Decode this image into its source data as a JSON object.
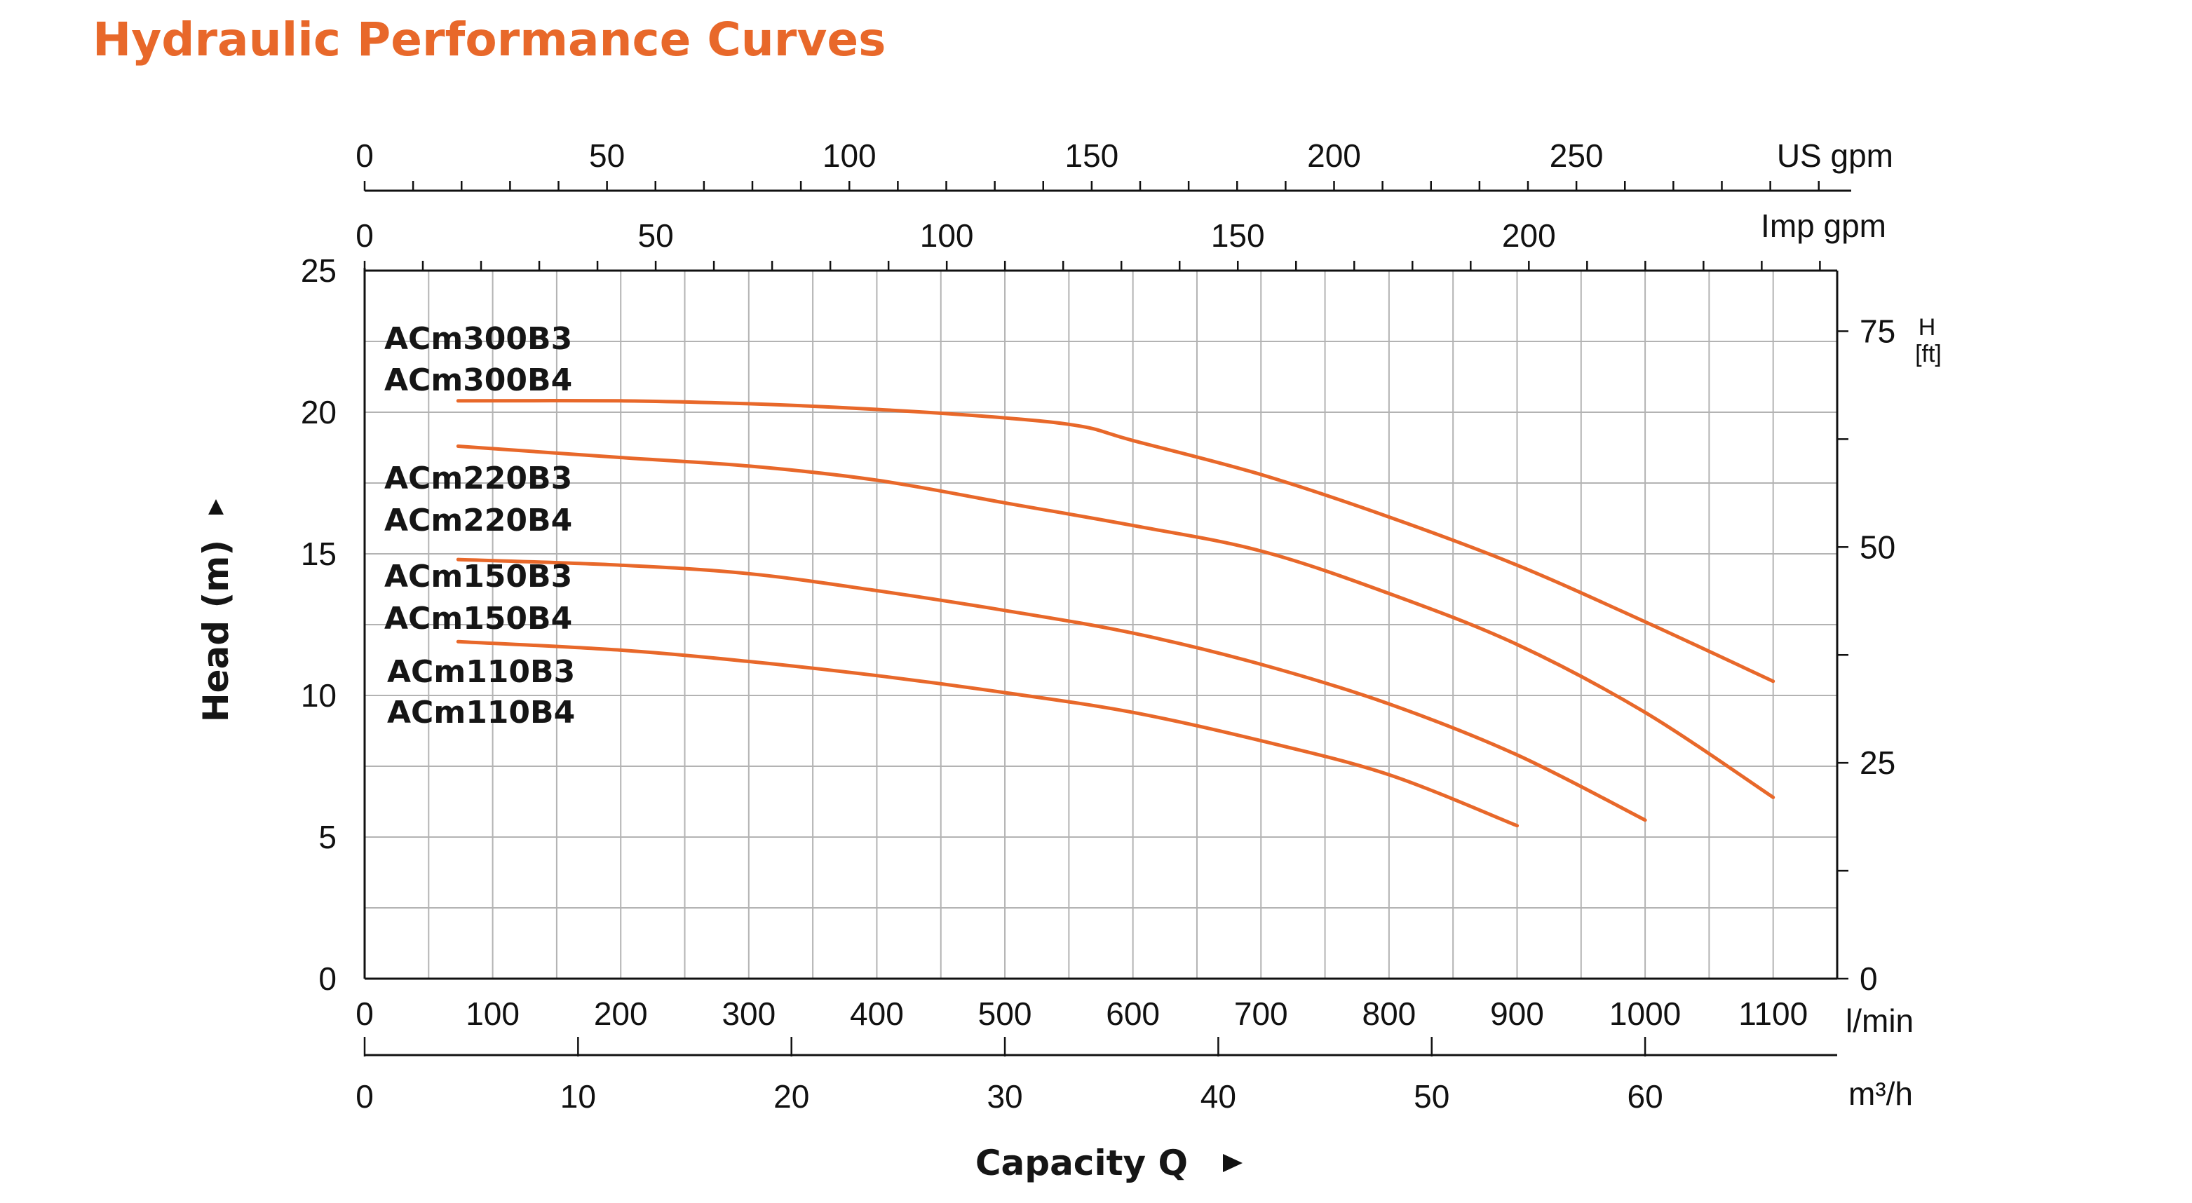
{
  "title": "Hydraulic Performance Curves",
  "chart_data": {
    "type": "line",
    "x": [
      80,
      200,
      300,
      400,
      500,
      560,
      600,
      700,
      800,
      900,
      1000,
      1100
    ],
    "xlabel": "Capacity Q",
    "ylabel": "Head (m)",
    "xlim": [
      0,
      1150
    ],
    "ylim": [
      0,
      25
    ],
    "grid": true,
    "x_ticks": [
      0,
      100,
      200,
      300,
      400,
      500,
      600,
      700,
      800,
      900,
      1000,
      1100
    ],
    "x_unit": "l/min",
    "y_ticks": [
      0,
      5,
      10,
      15,
      20,
      25
    ],
    "m3h_axis": {
      "unit": "m³/h",
      "ticks": [
        0,
        10,
        20,
        30,
        40,
        50,
        60
      ]
    },
    "us_gpm_axis": {
      "unit": "US gpm",
      "ticks": [
        0,
        50,
        100,
        150,
        200,
        250
      ]
    },
    "imp_gpm_axis": {
      "unit": "Imp gpm",
      "ticks": [
        0,
        50,
        100,
        150,
        200
      ]
    },
    "ft_axis": {
      "unit_top": "H",
      "unit_bottom": "[ft]",
      "ticks": [
        0,
        25,
        50,
        75
      ]
    },
    "series": [
      {
        "name": "ACm300B3 / ACm300B4",
        "labels": [
          "ACm300B3",
          "ACm300B4"
        ],
        "x": [
          73,
          200,
          300,
          400,
          500,
          560,
          600,
          700,
          800,
          900,
          1000,
          1100
        ],
        "values": [
          20.4,
          20.4,
          20.3,
          20.1,
          19.8,
          19.5,
          19.0,
          17.8,
          16.3,
          14.6,
          12.6,
          10.5
        ]
      },
      {
        "name": "ACm220B3 / ACm220B4",
        "labels": [
          "ACm220B3",
          "ACm220B4"
        ],
        "x": [
          73,
          200,
          300,
          400,
          500,
          600,
          700,
          800,
          900,
          1000,
          1100
        ],
        "values": [
          18.8,
          18.4,
          18.1,
          17.6,
          16.8,
          16.0,
          15.1,
          13.6,
          11.8,
          9.4,
          6.4
        ]
      },
      {
        "name": "ACm150B3 / ACm150B4",
        "labels": [
          "ACm150B3",
          "ACm150B4"
        ],
        "x": [
          73,
          200,
          300,
          400,
          500,
          600,
          700,
          800,
          900,
          1000
        ],
        "values": [
          14.8,
          14.6,
          14.3,
          13.7,
          13.0,
          12.2,
          11.1,
          9.7,
          7.9,
          5.6
        ]
      },
      {
        "name": "ACm110B3 / ACm110B4",
        "labels": [
          "ACm110B3",
          "ACm110B4"
        ],
        "x": [
          73,
          200,
          300,
          400,
          500,
          600,
          700,
          800,
          900
        ],
        "values": [
          11.9,
          11.6,
          11.2,
          10.7,
          10.1,
          9.4,
          8.4,
          7.2,
          5.4
        ]
      }
    ],
    "color": "#e8682a"
  }
}
